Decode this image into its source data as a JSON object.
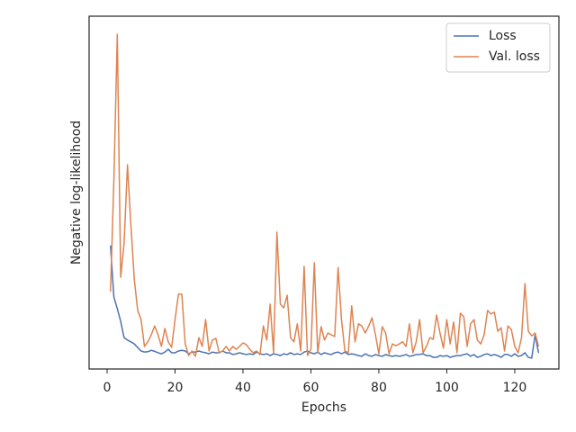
{
  "chart_data": {
    "type": "line",
    "x_label": "Epochs",
    "y_label": "Negative log-likelihood",
    "x": [
      1,
      2,
      3,
      4,
      5,
      6,
      7,
      8,
      9,
      10,
      11,
      12,
      13,
      14,
      15,
      16,
      17,
      18,
      19,
      20,
      21,
      22,
      23,
      24,
      25,
      26,
      27,
      28,
      29,
      30,
      31,
      32,
      33,
      34,
      35,
      36,
      37,
      38,
      39,
      40,
      41,
      42,
      43,
      44,
      45,
      46,
      47,
      48,
      49,
      50,
      51,
      52,
      53,
      54,
      55,
      56,
      57,
      58,
      59,
      60,
      61,
      62,
      63,
      64,
      65,
      66,
      67,
      68,
      69,
      70,
      71,
      72,
      73,
      74,
      75,
      76,
      77,
      78,
      79,
      80,
      81,
      82,
      83,
      84,
      85,
      86,
      87,
      88,
      89,
      90,
      91,
      92,
      93,
      94,
      95,
      96,
      97,
      98,
      99,
      100,
      101,
      102,
      103,
      104,
      105,
      106,
      107,
      108,
      109,
      110,
      111,
      112,
      113,
      114,
      115,
      116,
      117,
      118,
      119,
      120,
      121,
      122,
      123,
      124,
      125,
      126,
      127
    ],
    "series": [
      {
        "name": "Loss",
        "color": "#4c72b0",
        "values": [
          35.0,
          20.4,
          17.1,
          13.5,
          8.9,
          8.2,
          7.7,
          7.1,
          6.1,
          5.1,
          4.8,
          4.9,
          5.3,
          5.0,
          4.6,
          4.3,
          4.8,
          5.6,
          4.6,
          4.6,
          5.1,
          5.3,
          5.1,
          4.3,
          4.8,
          4.8,
          5.1,
          4.8,
          4.6,
          4.3,
          4.8,
          4.6,
          4.6,
          5.1,
          4.6,
          4.6,
          4.1,
          4.3,
          4.6,
          4.3,
          4.1,
          4.3,
          4.1,
          4.8,
          4.3,
          4.1,
          4.3,
          3.8,
          4.3,
          4.1,
          3.8,
          4.3,
          4.1,
          4.6,
          4.1,
          4.3,
          4.1,
          4.8,
          5.1,
          4.6,
          4.3,
          4.8,
          4.1,
          4.6,
          4.3,
          4.1,
          4.6,
          4.8,
          4.3,
          4.8,
          4.1,
          4.3,
          4.1,
          3.8,
          3.6,
          4.3,
          3.8,
          3.6,
          4.1,
          3.8,
          3.6,
          4.1,
          3.8,
          3.6,
          3.8,
          3.6,
          3.8,
          4.1,
          3.6,
          3.8,
          4.1,
          4.1,
          4.3,
          3.8,
          3.8,
          3.3,
          3.3,
          3.8,
          3.6,
          3.8,
          3.3,
          3.6,
          3.8,
          3.8,
          4.1,
          4.3,
          3.6,
          4.1,
          3.3,
          3.6,
          4.1,
          4.3,
          3.8,
          4.1,
          3.8,
          3.3,
          4.1,
          4.1,
          3.6,
          4.3,
          3.6,
          3.8,
          4.6,
          3.3,
          3.1,
          9.7,
          4.6
        ]
      },
      {
        "name": "Val. loss",
        "color": "#dd8452",
        "values": [
          21.9,
          53.6,
          94.9,
          26.0,
          35.7,
          57.9,
          40.8,
          25.5,
          16.6,
          14.0,
          6.4,
          7.7,
          9.7,
          12.2,
          9.7,
          6.4,
          11.5,
          7.7,
          6.1,
          14.0,
          21.2,
          21.2,
          7.1,
          3.8,
          5.1,
          3.6,
          8.9,
          6.4,
          14.0,
          5.1,
          8.2,
          8.7,
          4.6,
          5.1,
          6.4,
          5.1,
          6.4,
          5.6,
          6.4,
          7.4,
          6.9,
          5.6,
          4.6,
          5.1,
          4.1,
          12.2,
          8.2,
          18.4,
          4.6,
          38.8,
          18.4,
          17.3,
          20.9,
          8.9,
          7.7,
          12.8,
          5.1,
          29.1,
          3.8,
          5.6,
          30.1,
          4.6,
          12.0,
          8.2,
          10.2,
          9.7,
          9.2,
          28.8,
          14.0,
          5.1,
          4.6,
          17.9,
          7.7,
          12.8,
          12.2,
          10.2,
          12.2,
          14.5,
          9.7,
          4.3,
          12.0,
          10.2,
          4.3,
          7.1,
          6.6,
          7.1,
          7.7,
          6.4,
          12.8,
          4.6,
          7.7,
          14.0,
          4.6,
          6.4,
          8.9,
          8.4,
          15.3,
          10.2,
          5.9,
          14.0,
          7.1,
          13.3,
          4.6,
          15.8,
          14.8,
          6.4,
          12.8,
          14.0,
          8.2,
          7.1,
          9.7,
          16.6,
          15.6,
          16.1,
          10.7,
          11.7,
          5.1,
          12.2,
          11.2,
          6.4,
          4.6,
          8.9,
          24.2,
          10.7,
          9.4,
          10.2,
          6.4
        ]
      }
    ],
    "xlim": [
      -5.3,
      133
    ],
    "xticks": [
      0,
      20,
      40,
      60,
      80,
      100,
      120
    ],
    "ylim": [
      0,
      100
    ],
    "legend": "upper right"
  }
}
